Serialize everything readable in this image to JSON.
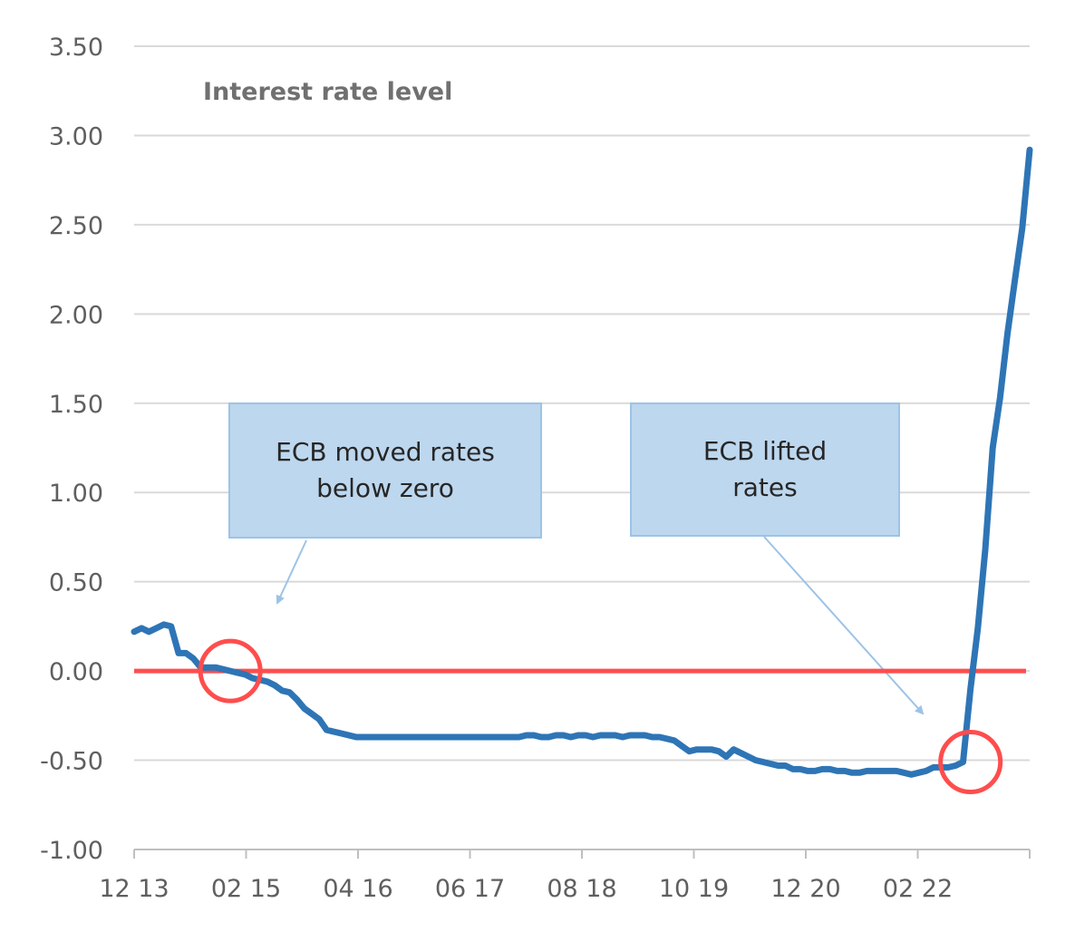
{
  "chart_data": {
    "type": "line",
    "title": "Interest rate level",
    "xlabel": "",
    "ylabel": "",
    "ylim": [
      -1.0,
      3.5
    ],
    "yticks": [
      "3.50",
      "3.00",
      "2.50",
      "2.00",
      "1.50",
      "1.00",
      "0.50",
      "0.00",
      "-0.50",
      "-1.00"
    ],
    "xtick_labels": [
      "12 13",
      "02 15",
      "04 16",
      "06 17",
      "08 18",
      "10 19",
      "12 20",
      "02 22"
    ],
    "x_start": "12 13",
    "x_end": "04 23",
    "grid": true,
    "series": [
      {
        "color": "#2e75b6",
        "values": [
          0.22,
          0.24,
          0.22,
          0.24,
          0.26,
          0.25,
          0.1,
          0.1,
          0.07,
          0.02,
          0.02,
          0.02,
          0.01,
          0.0,
          -0.01,
          -0.02,
          -0.04,
          -0.05,
          -0.06,
          -0.08,
          -0.11,
          -0.12,
          -0.16,
          -0.21,
          -0.24,
          -0.27,
          -0.33,
          -0.34,
          -0.35,
          -0.36,
          -0.37,
          -0.37,
          -0.37,
          -0.37,
          -0.37,
          -0.37,
          -0.37,
          -0.37,
          -0.37,
          -0.37,
          -0.37,
          -0.37,
          -0.37,
          -0.37,
          -0.37,
          -0.37,
          -0.37,
          -0.37,
          -0.37,
          -0.37,
          -0.37,
          -0.37,
          -0.37,
          -0.36,
          -0.36,
          -0.37,
          -0.37,
          -0.36,
          -0.36,
          -0.37,
          -0.36,
          -0.36,
          -0.37,
          -0.36,
          -0.36,
          -0.36,
          -0.37,
          -0.36,
          -0.36,
          -0.36,
          -0.37,
          -0.37,
          -0.38,
          -0.39,
          -0.42,
          -0.45,
          -0.44,
          -0.44,
          -0.44,
          -0.45,
          -0.48,
          -0.44,
          -0.46,
          -0.48,
          -0.5,
          -0.51,
          -0.52,
          -0.53,
          -0.53,
          -0.55,
          -0.55,
          -0.56,
          -0.56,
          -0.55,
          -0.55,
          -0.56,
          -0.56,
          -0.57,
          -0.57,
          -0.56,
          -0.56,
          -0.56,
          -0.56,
          -0.56,
          -0.57,
          -0.58,
          -0.57,
          -0.56,
          -0.54,
          -0.54,
          -0.54,
          -0.53,
          -0.51,
          -0.1,
          0.24,
          0.68,
          1.25,
          1.53,
          1.89,
          2.19,
          2.48,
          2.92
        ]
      },
      {
        "color": "#ff4d4d",
        "values": [
          0.0,
          0.0
        ]
      }
    ],
    "highlight_circles": [
      {
        "x_index": 13,
        "y": 0.0
      },
      {
        "x_index": 113,
        "y": -0.51
      }
    ]
  },
  "annotations": [
    {
      "text": "ECB moved rates\nbelow zero"
    },
    {
      "text": "ECB lifted\nrates"
    }
  ],
  "colors": {
    "line": "#2e75b6",
    "zero_line": "#ff4d4d",
    "circle": "#ff4d4d",
    "grid": "#d9d9d9",
    "axis": "#bfbfbf",
    "annotation_fill": "#bdd7ee",
    "annotation_border": "#9dc3e6",
    "arrow": "#9dc3e6"
  }
}
